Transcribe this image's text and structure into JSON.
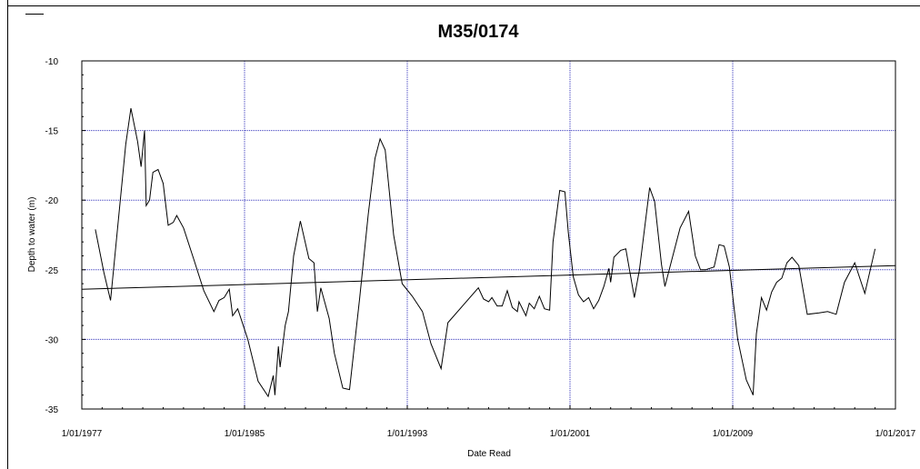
{
  "chart_data": {
    "type": "line",
    "title": "M35/0174",
    "xlabel": "Date Read",
    "ylabel": "Depth to water (m)",
    "xlim": [
      "1977-01-01",
      "2017-01-01"
    ],
    "ylim": [
      -35,
      -10
    ],
    "x_tick_labels": [
      "1/01/1977",
      "1/01/1985",
      "1/01/1993",
      "1/01/2001",
      "1/01/2009",
      "1/01/2017"
    ],
    "y_tick_labels": [
      "-10",
      "-15",
      "-20",
      "-25",
      "-30",
      "-35"
    ],
    "grid": true,
    "colors": {
      "series": "#000000",
      "grid": "#3333bb",
      "trend": "#000000"
    },
    "series": [
      {
        "values": [
          [
            "1977-09-01",
            -22.1
          ],
          [
            "1978-02-01",
            -25.2
          ],
          [
            "1978-06-01",
            -27.2
          ],
          [
            "1979-03-01",
            -16.0
          ],
          [
            "1979-06-01",
            -13.4
          ],
          [
            "1979-10-01",
            -15.8
          ],
          [
            "1979-12-01",
            -17.6
          ],
          [
            "1980-02-01",
            -15.0
          ],
          [
            "1980-03-01",
            -20.4
          ],
          [
            "1980-05-01",
            -20.0
          ],
          [
            "1980-07-01",
            -18.0
          ],
          [
            "1980-10-01",
            -17.8
          ],
          [
            "1981-01-01",
            -18.8
          ],
          [
            "1981-04-01",
            -21.8
          ],
          [
            "1981-07-01",
            -21.6
          ],
          [
            "1981-09-01",
            -21.1
          ],
          [
            "1982-01-01",
            -22.0
          ],
          [
            "1982-07-01",
            -24.2
          ],
          [
            "1983-01-01",
            -26.5
          ],
          [
            "1983-07-01",
            -28.0
          ],
          [
            "1983-10-01",
            -27.2
          ],
          [
            "1984-01-01",
            -27.0
          ],
          [
            "1984-04-01",
            -26.4
          ],
          [
            "1984-06-01",
            -28.3
          ],
          [
            "1984-09-01",
            -27.8
          ],
          [
            "1985-03-01",
            -30.0
          ],
          [
            "1985-09-01",
            -33.0
          ],
          [
            "1986-03-01",
            -34.1
          ],
          [
            "1986-06-01",
            -32.6
          ],
          [
            "1986-07-01",
            -34.0
          ],
          [
            "1986-09-01",
            -30.5
          ],
          [
            "1986-10-01",
            -32.0
          ],
          [
            "1987-01-01",
            -29.0
          ],
          [
            "1987-03-01",
            -28.0
          ],
          [
            "1987-06-01",
            -24.0
          ],
          [
            "1987-10-01",
            -21.5
          ],
          [
            "1988-03-01",
            -24.2
          ],
          [
            "1988-06-01",
            -24.5
          ],
          [
            "1988-08-01",
            -28.0
          ],
          [
            "1988-10-01",
            -26.3
          ],
          [
            "1989-03-01",
            -28.5
          ],
          [
            "1989-06-01",
            -31.0
          ],
          [
            "1989-11-01",
            -33.5
          ],
          [
            "1990-03-01",
            -33.6
          ],
          [
            "1990-09-01",
            -27.0
          ],
          [
            "1991-02-01",
            -21.0
          ],
          [
            "1991-06-01",
            -17.0
          ],
          [
            "1991-09-01",
            -15.6
          ],
          [
            "1991-12-01",
            -16.4
          ],
          [
            "1992-05-01",
            -22.5
          ],
          [
            "1992-10-01",
            -26.0
          ],
          [
            "1993-04-01",
            -26.9
          ],
          [
            "1993-10-01",
            -28.0
          ],
          [
            "1994-03-01",
            -30.3
          ],
          [
            "1994-09-01",
            -32.1
          ],
          [
            "1995-01-01",
            -28.8
          ],
          [
            "1996-07-01",
            -26.3
          ],
          [
            "1996-10-01",
            -27.1
          ],
          [
            "1997-01-01",
            -27.3
          ],
          [
            "1997-03-01",
            -27.0
          ],
          [
            "1997-06-01",
            -27.6
          ],
          [
            "1997-09-01",
            -27.6
          ],
          [
            "1997-12-01",
            -26.5
          ],
          [
            "1998-03-01",
            -27.7
          ],
          [
            "1998-06-01",
            -28.0
          ],
          [
            "1998-07-01",
            -27.3
          ],
          [
            "1998-11-01",
            -28.3
          ],
          [
            "1999-01-01",
            -27.4
          ],
          [
            "1999-04-01",
            -27.8
          ],
          [
            "1999-07-01",
            -26.9
          ],
          [
            "1999-10-01",
            -27.8
          ],
          [
            "2000-01-01",
            -27.9
          ],
          [
            "2000-03-01",
            -23.0
          ],
          [
            "2000-07-01",
            -19.3
          ],
          [
            "2000-10-01",
            -19.4
          ],
          [
            "2000-12-01",
            -22.3
          ],
          [
            "2001-03-01",
            -25.5
          ],
          [
            "2001-06-01",
            -26.8
          ],
          [
            "2001-09-01",
            -27.3
          ],
          [
            "2001-12-01",
            -27.0
          ],
          [
            "2002-03-01",
            -27.8
          ],
          [
            "2002-06-01",
            -27.2
          ],
          [
            "2002-09-01",
            -26.2
          ],
          [
            "2002-12-01",
            -24.9
          ],
          [
            "2003-01-01",
            -25.9
          ],
          [
            "2003-03-01",
            -24.1
          ],
          [
            "2003-07-01",
            -23.6
          ],
          [
            "2003-10-01",
            -23.5
          ],
          [
            "2004-03-01",
            -27.0
          ],
          [
            "2004-06-01",
            -25.0
          ],
          [
            "2004-12-01",
            -19.1
          ],
          [
            "2005-03-01",
            -20.1
          ],
          [
            "2005-07-01",
            -24.6
          ],
          [
            "2005-09-01",
            -26.2
          ],
          [
            "2006-01-01",
            -24.3
          ],
          [
            "2006-06-01",
            -22.0
          ],
          [
            "2006-11-01",
            -20.8
          ],
          [
            "2007-03-01",
            -24.0
          ],
          [
            "2007-06-01",
            -25.0
          ],
          [
            "2007-09-01",
            -25.0
          ],
          [
            "2008-02-01",
            -24.8
          ],
          [
            "2008-05-01",
            -23.2
          ],
          [
            "2008-08-01",
            -23.3
          ],
          [
            "2008-11-01",
            -24.8
          ],
          [
            "2009-04-01",
            -30.0
          ],
          [
            "2009-09-01",
            -32.9
          ],
          [
            "2010-01-01",
            -34.0
          ],
          [
            "2010-03-01",
            -29.6
          ],
          [
            "2010-06-01",
            -27.0
          ],
          [
            "2010-09-01",
            -27.9
          ],
          [
            "2010-12-01",
            -26.6
          ],
          [
            "2011-03-01",
            -25.9
          ],
          [
            "2011-06-01",
            -25.6
          ],
          [
            "2011-09-01",
            -24.5
          ],
          [
            "2011-12-01",
            -24.1
          ],
          [
            "2012-04-01",
            -24.7
          ],
          [
            "2012-09-01",
            -28.2
          ],
          [
            "2013-04-01",
            -28.1
          ],
          [
            "2013-09-01",
            -28.0
          ],
          [
            "2014-02-01",
            -28.2
          ],
          [
            "2014-07-01",
            -25.9
          ],
          [
            "2015-01-01",
            -24.5
          ],
          [
            "2015-07-01",
            -26.7
          ],
          [
            "2016-01-01",
            -23.5
          ]
        ]
      }
    ],
    "trend": {
      "start": [
        "1977-01-01",
        -26.4
      ],
      "end": [
        "2017-01-01",
        -24.7
      ]
    }
  }
}
